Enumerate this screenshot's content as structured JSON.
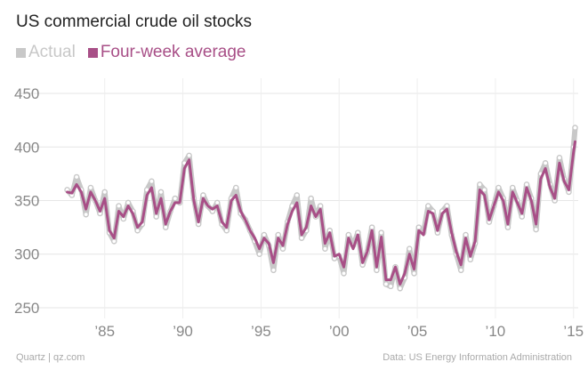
{
  "chart_data": {
    "type": "line",
    "title": "US commercial crude oil stocks",
    "xlabel": "",
    "ylabel": "",
    "ylim": [
      240,
      460
    ],
    "xlim": [
      1981.6,
      2015.3
    ],
    "y_ticks": [
      250,
      300,
      350,
      400,
      450
    ],
    "x_ticks": [
      {
        "value": 1985,
        "label": "’85"
      },
      {
        "value": 1990,
        "label": "’90"
      },
      {
        "value": 1995,
        "label": "’95"
      },
      {
        "value": 2000,
        "label": "’00"
      },
      {
        "value": 2005,
        "label": "’05"
      },
      {
        "value": 2010,
        "label": "’10"
      },
      {
        "value": 2015,
        "label": "’15"
      }
    ],
    "grid": true,
    "legend_position": "top-left",
    "series": [
      {
        "name": "Actual",
        "color": "#c8c8c8",
        "x": [
          1982.6,
          1982.9,
          1983.2,
          1983.5,
          1983.8,
          1984.1,
          1984.4,
          1984.7,
          1985.0,
          1985.3,
          1985.6,
          1985.9,
          1986.2,
          1986.5,
          1986.8,
          1987.1,
          1987.4,
          1987.7,
          1988.0,
          1988.3,
          1988.6,
          1988.9,
          1989.2,
          1989.5,
          1989.8,
          1990.1,
          1990.4,
          1990.7,
          1991.0,
          1991.3,
          1991.6,
          1991.9,
          1992.2,
          1992.5,
          1992.8,
          1993.1,
          1993.4,
          1993.7,
          1994.0,
          1994.3,
          1994.6,
          1994.9,
          1995.2,
          1995.5,
          1995.8,
          1996.1,
          1996.4,
          1996.7,
          1997.0,
          1997.3,
          1997.6,
          1997.9,
          1998.2,
          1998.5,
          1998.8,
          1999.1,
          1999.4,
          1999.7,
          2000.0,
          2000.3,
          2000.6,
          2000.9,
          2001.2,
          2001.5,
          2001.8,
          2002.1,
          2002.4,
          2002.7,
          2003.0,
          2003.3,
          2003.6,
          2003.9,
          2004.2,
          2004.5,
          2004.8,
          2005.1,
          2005.4,
          2005.7,
          2006.0,
          2006.3,
          2006.6,
          2006.9,
          2007.2,
          2007.5,
          2007.8,
          2008.1,
          2008.4,
          2008.7,
          2009.0,
          2009.3,
          2009.6,
          2009.9,
          2010.2,
          2010.5,
          2010.8,
          2011.1,
          2011.4,
          2011.7,
          2012.0,
          2012.3,
          2012.6,
          2012.9,
          2013.2,
          2013.5,
          2013.8,
          2014.1,
          2014.4,
          2014.7,
          2015.0,
          2015.1
        ],
        "values": [
          360,
          355,
          372,
          360,
          337,
          362,
          350,
          338,
          358,
          320,
          312,
          345,
          333,
          348,
          340,
          322,
          328,
          360,
          368,
          335,
          358,
          325,
          340,
          352,
          348,
          385,
          392,
          352,
          328,
          355,
          345,
          340,
          348,
          328,
          322,
          352,
          362,
          338,
          332,
          322,
          312,
          300,
          318,
          308,
          285,
          318,
          305,
          330,
          345,
          355,
          315,
          322,
          352,
          335,
          345,
          305,
          322,
          296,
          298,
          282,
          318,
          308,
          320,
          290,
          302,
          325,
          285,
          320,
          272,
          270,
          288,
          268,
          278,
          305,
          282,
          325,
          320,
          345,
          340,
          320,
          340,
          345,
          318,
          300,
          285,
          318,
          295,
          310,
          365,
          360,
          330,
          345,
          362,
          352,
          325,
          362,
          350,
          335,
          365,
          352,
          323,
          375,
          385,
          365,
          350,
          390,
          370,
          358,
          400,
          418
        ]
      },
      {
        "name": "Four-week average",
        "color": "#a84f87",
        "x": [
          1982.6,
          1982.9,
          1983.2,
          1983.5,
          1983.8,
          1984.1,
          1984.4,
          1984.7,
          1985.0,
          1985.3,
          1985.6,
          1985.9,
          1986.2,
          1986.5,
          1986.8,
          1987.1,
          1987.4,
          1987.7,
          1988.0,
          1988.3,
          1988.6,
          1988.9,
          1989.2,
          1989.5,
          1989.8,
          1990.1,
          1990.4,
          1990.7,
          1991.0,
          1991.3,
          1991.6,
          1991.9,
          1992.2,
          1992.5,
          1992.8,
          1993.1,
          1993.4,
          1993.7,
          1994.0,
          1994.3,
          1994.6,
          1994.9,
          1995.2,
          1995.5,
          1995.8,
          1996.1,
          1996.4,
          1996.7,
          1997.0,
          1997.3,
          1997.6,
          1997.9,
          1998.2,
          1998.5,
          1998.8,
          1999.1,
          1999.4,
          1999.7,
          2000.0,
          2000.3,
          2000.6,
          2000.9,
          2001.2,
          2001.5,
          2001.8,
          2002.1,
          2002.4,
          2002.7,
          2003.0,
          2003.3,
          2003.6,
          2003.9,
          2004.2,
          2004.5,
          2004.8,
          2005.1,
          2005.4,
          2005.7,
          2006.0,
          2006.3,
          2006.6,
          2006.9,
          2007.2,
          2007.5,
          2007.8,
          2008.1,
          2008.4,
          2008.7,
          2009.0,
          2009.3,
          2009.6,
          2009.9,
          2010.2,
          2010.5,
          2010.8,
          2011.1,
          2011.4,
          2011.7,
          2012.0,
          2012.3,
          2012.6,
          2012.9,
          2013.2,
          2013.5,
          2013.8,
          2014.1,
          2014.4,
          2014.7,
          2015.0,
          2015.1
        ],
        "values": [
          358,
          357,
          365,
          358,
          342,
          358,
          350,
          340,
          352,
          322,
          315,
          340,
          335,
          345,
          338,
          325,
          330,
          355,
          362,
          338,
          352,
          328,
          340,
          348,
          348,
          380,
          388,
          350,
          330,
          352,
          345,
          342,
          345,
          330,
          325,
          350,
          355,
          340,
          332,
          322,
          315,
          305,
          315,
          310,
          292,
          315,
          308,
          328,
          340,
          348,
          318,
          325,
          345,
          335,
          342,
          310,
          320,
          298,
          300,
          288,
          315,
          305,
          318,
          292,
          302,
          322,
          288,
          316,
          276,
          276,
          288,
          272,
          282,
          300,
          286,
          322,
          318,
          340,
          338,
          322,
          338,
          342,
          320,
          302,
          290,
          315,
          298,
          312,
          360,
          355,
          332,
          345,
          358,
          350,
          328,
          358,
          348,
          338,
          362,
          350,
          328,
          370,
          380,
          362,
          352,
          385,
          368,
          360,
          395,
          405
        ]
      }
    ]
  },
  "footer": {
    "source_left": "Quartz | qz.com",
    "source_right": "Data: US Energy Information Administration"
  }
}
